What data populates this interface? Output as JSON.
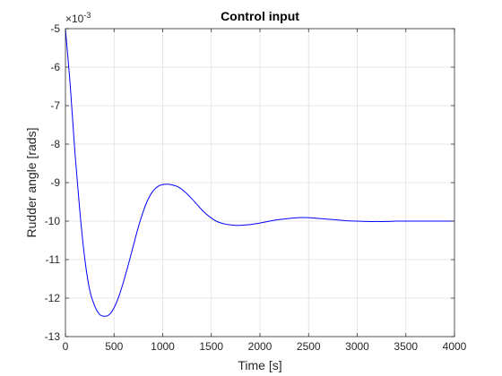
{
  "chart_data": {
    "type": "line",
    "title": "Control input",
    "xlabel": "Time [s]",
    "ylabel": "Rudder angle [rads]",
    "xlim": [
      0,
      4000
    ],
    "ylim": [
      -13,
      -5
    ],
    "y_exponent_label": "×10",
    "y_exponent_power": "-3",
    "xticks": [
      "0",
      "500",
      "1000",
      "1500",
      "2000",
      "2500",
      "3000",
      "3500",
      "4000"
    ],
    "yticks": [
      "-5",
      "-6",
      "-7",
      "-8",
      "-9",
      "-10",
      "-11",
      "-12",
      "-13"
    ],
    "grid": true,
    "colors": {
      "line": "#0000ff",
      "grid": "#dfdfdf",
      "axis": "#262626"
    },
    "series": [
      {
        "x": [
          0,
          50,
          100,
          150,
          200,
          250,
          300,
          350,
          400,
          450,
          500,
          550,
          600,
          650,
          700,
          750,
          800,
          850,
          900,
          950,
          1000,
          1050,
          1100,
          1150,
          1200,
          1250,
          1300,
          1350,
          1400,
          1450,
          1500,
          1550,
          1600,
          1650,
          1700,
          1750,
          1800,
          1850,
          1900,
          1950,
          2000,
          2100,
          2200,
          2300,
          2400,
          2500,
          2550,
          2600,
          2700,
          2800,
          2900,
          3000,
          3100,
          3200,
          3300,
          3400,
          3500,
          3600,
          3700,
          3800,
          3900,
          4000
        ],
        "values": [
          -5.0,
          -6.5,
          -8.3,
          -9.8,
          -11.0,
          -11.8,
          -12.2,
          -12.42,
          -12.47,
          -12.43,
          -12.25,
          -11.95,
          -11.55,
          -11.1,
          -10.62,
          -10.15,
          -9.75,
          -9.43,
          -9.22,
          -9.1,
          -9.05,
          -9.04,
          -9.06,
          -9.1,
          -9.18,
          -9.29,
          -9.42,
          -9.56,
          -9.7,
          -9.82,
          -9.92,
          -10.0,
          -10.05,
          -10.08,
          -10.1,
          -10.11,
          -10.11,
          -10.1,
          -10.09,
          -10.07,
          -10.05,
          -10.0,
          -9.96,
          -9.93,
          -9.91,
          -9.91,
          -9.92,
          -9.93,
          -9.95,
          -9.97,
          -9.99,
          -10.0,
          -10.01,
          -10.01,
          -10.01,
          -10.0,
          -10.0,
          -10.0,
          -10.0,
          -10.0,
          -10.0,
          -10.0
        ]
      }
    ]
  }
}
